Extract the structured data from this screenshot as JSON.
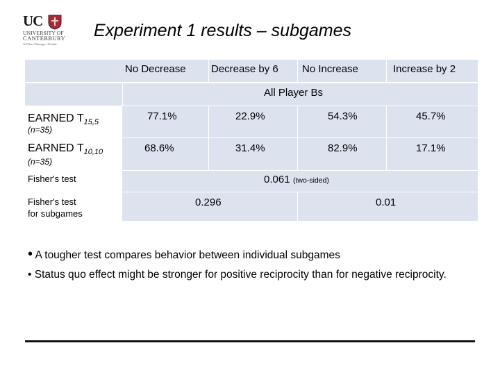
{
  "logo": {
    "uc": "UC",
    "line1": "UNIVERSITY OF",
    "line2": "CANTERBURY",
    "line3": "Te Whare Wānanga o Waitaha"
  },
  "title": "Experiment 1 results – subgames",
  "table": {
    "columns": [
      "No Decrease",
      "Decrease by 6",
      "No Increase",
      "Increase by 2"
    ],
    "group_label": "All Player Bs",
    "rows": [
      {
        "label": "EARNED T",
        "sub": "15,5",
        "n": "(n=35)",
        "values": [
          "77.1%",
          "22.9%",
          "54.3%",
          "45.7%"
        ]
      },
      {
        "label": "EARNED T",
        "sub": "10,10",
        "n": "(n=35)",
        "values": [
          "68.6%",
          "31.4%",
          "82.9%",
          "17.1%"
        ]
      }
    ],
    "fisher": {
      "label": "Fisher's test",
      "value": "0.061",
      "note": "(two-sided)"
    },
    "fisher_sub": {
      "label_line1": "Fisher's test",
      "label_line2": "for subgames",
      "left_value": "0.296",
      "right_value": "0.01"
    }
  },
  "bullets": [
    "A tougher test compares behavior between individual subgames",
    "Status quo effect might be stronger for positive reciprocity than for negative reciprocity."
  ],
  "colors": {
    "band": "#dce3ef",
    "crest": "#a8283a"
  }
}
